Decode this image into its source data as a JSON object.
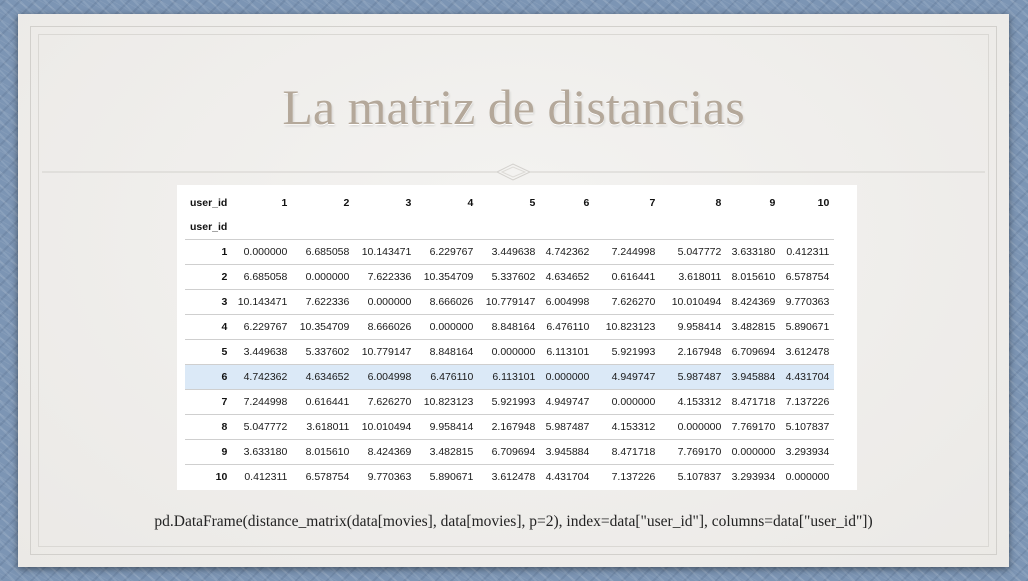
{
  "slide": {
    "title": "La matriz de distancias",
    "code": "pd.DataFrame(distance_matrix(data[movies], data[movies], p=2), index=data[\"user_id\"], columns=data[\"user_id\"])"
  },
  "table": {
    "columns_label": "user_id",
    "index_label": "user_id",
    "columns": [
      "1",
      "2",
      "3",
      "4",
      "5",
      "6",
      "7",
      "8",
      "9",
      "10"
    ],
    "highlighted_row": "6",
    "rows": [
      {
        "index": "1",
        "values": [
          "0.000000",
          "6.685058",
          "10.143471",
          "6.229767",
          "3.449638",
          "4.742362",
          "7.244998",
          "5.047772",
          "3.633180",
          "0.412311"
        ]
      },
      {
        "index": "2",
        "values": [
          "6.685058",
          "0.000000",
          "7.622336",
          "10.354709",
          "5.337602",
          "4.634652",
          "0.616441",
          "3.618011",
          "8.015610",
          "6.578754"
        ]
      },
      {
        "index": "3",
        "values": [
          "10.143471",
          "7.622336",
          "0.000000",
          "8.666026",
          "10.779147",
          "6.004998",
          "7.626270",
          "10.010494",
          "8.424369",
          "9.770363"
        ]
      },
      {
        "index": "4",
        "values": [
          "6.229767",
          "10.354709",
          "8.666026",
          "0.000000",
          "8.848164",
          "6.476110",
          "10.823123",
          "9.958414",
          "3.482815",
          "5.890671"
        ]
      },
      {
        "index": "5",
        "values": [
          "3.449638",
          "5.337602",
          "10.779147",
          "8.848164",
          "0.000000",
          "6.113101",
          "5.921993",
          "2.167948",
          "6.709694",
          "3.612478"
        ]
      },
      {
        "index": "6",
        "values": [
          "4.742362",
          "4.634652",
          "6.004998",
          "6.476110",
          "6.113101",
          "0.000000",
          "4.949747",
          "5.987487",
          "3.945884",
          "4.431704"
        ]
      },
      {
        "index": "7",
        "values": [
          "7.244998",
          "0.616441",
          "7.626270",
          "10.823123",
          "5.921993",
          "4.949747",
          "0.000000",
          "4.153312",
          "8.471718",
          "7.137226"
        ]
      },
      {
        "index": "8",
        "values": [
          "5.047772",
          "3.618011",
          "10.010494",
          "9.958414",
          "2.167948",
          "5.987487",
          "4.153312",
          "0.000000",
          "7.769170",
          "5.107837"
        ]
      },
      {
        "index": "9",
        "values": [
          "3.633180",
          "8.015610",
          "8.424369",
          "3.482815",
          "6.709694",
          "3.945884",
          "8.471718",
          "7.769170",
          "0.000000",
          "3.293934"
        ]
      },
      {
        "index": "10",
        "values": [
          "0.412311",
          "6.578754",
          "9.770363",
          "5.890671",
          "3.612478",
          "4.431704",
          "7.137226",
          "5.107837",
          "3.293934",
          "0.000000"
        ]
      }
    ]
  },
  "theme": {
    "title_color": "#b4a89a",
    "highlight_color": "#dbe9f7",
    "paper_color": "#efeeec",
    "background_color": "#7c95b4"
  }
}
